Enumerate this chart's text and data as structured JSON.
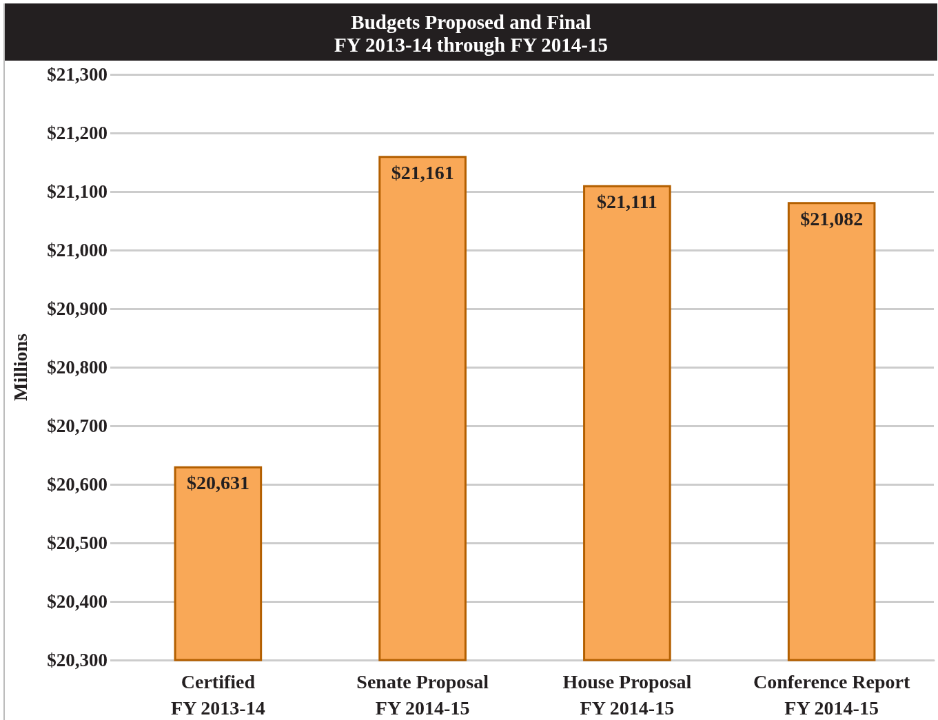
{
  "chart_data": {
    "type": "bar",
    "title": "Budgets Proposed and Final\nFY 2013-14 through FY 2014-15",
    "ylabel": "Millions",
    "categories": [
      "Certified\nFY 2013-14",
      "Senate Proposal\nFY 2014-15",
      "House Proposal\nFY 2014-15",
      "Conference Report\nFY 2014-15"
    ],
    "values": [
      20631,
      21161,
      21111,
      21082
    ],
    "value_labels": [
      "$20,631",
      "$21,161",
      "$21,111",
      "$21,082"
    ],
    "color": "#f9a857",
    "ylim": [
      20300,
      21300
    ],
    "yticks": [
      {
        "value": 20300,
        "label": "$20,300"
      },
      {
        "value": 20400,
        "label": "$20,400"
      },
      {
        "value": 20500,
        "label": "$20,500"
      },
      {
        "value": 20600,
        "label": "$20,600"
      },
      {
        "value": 20700,
        "label": "$20,700"
      },
      {
        "value": 20800,
        "label": "$20,800"
      },
      {
        "value": 20900,
        "label": "$20,900"
      },
      {
        "value": 21000,
        "label": "$21,000"
      },
      {
        "value": 21100,
        "label": "$21,100"
      },
      {
        "value": 21200,
        "label": "$21,200"
      },
      {
        "value": 21300,
        "label": "$21,300"
      }
    ],
    "grid": "y"
  }
}
